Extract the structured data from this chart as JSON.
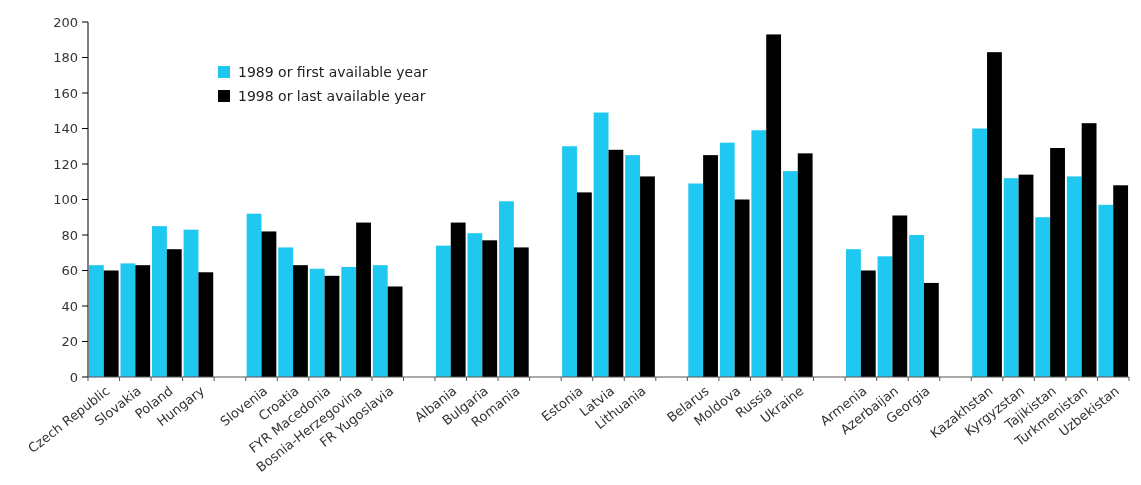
{
  "chart_data": {
    "type": "bar",
    "categories": [
      "Czech Republic",
      "Slovakia",
      "Poland",
      "Hungary",
      null,
      "Slovenia",
      "Croatia",
      "FYR Macedonia",
      "Bosnia-Herzegovina",
      "FR Yugoslavia",
      null,
      "Albania",
      "Bulgaria",
      "Romania",
      null,
      "Estonia",
      "Latvia",
      "Lithuania",
      null,
      "Belarus",
      "Moldova",
      "Russia",
      "Ukraine",
      null,
      "Armenia",
      "Azerbaijan",
      "Georgia",
      null,
      "Kazakhstan",
      "Kyrgyzstan",
      "Tajikistan",
      "Turkmenistan",
      "Uzbekistan"
    ],
    "series": [
      {
        "name": "1989 or first available year",
        "color": "#1ec8f0",
        "values": [
          63,
          64,
          85,
          83,
          null,
          92,
          73,
          61,
          62,
          63,
          null,
          74,
          81,
          99,
          null,
          130,
          149,
          125,
          null,
          109,
          132,
          139,
          116,
          null,
          72,
          68,
          80,
          null,
          140,
          112,
          90,
          113,
          97
        ]
      },
      {
        "name": "1998 or last available year",
        "color": "#000000",
        "values": [
          60,
          63,
          72,
          59,
          null,
          82,
          63,
          57,
          87,
          51,
          null,
          87,
          77,
          73,
          null,
          104,
          128,
          113,
          null,
          125,
          100,
          193,
          126,
          null,
          60,
          91,
          53,
          null,
          183,
          114,
          129,
          143,
          108
        ]
      }
    ],
    "ylim": [
      0,
      200
    ],
    "yticks": [
      0,
      20,
      40,
      60,
      80,
      100,
      120,
      140,
      160,
      180,
      200
    ],
    "grid": false,
    "legend": "top left"
  }
}
